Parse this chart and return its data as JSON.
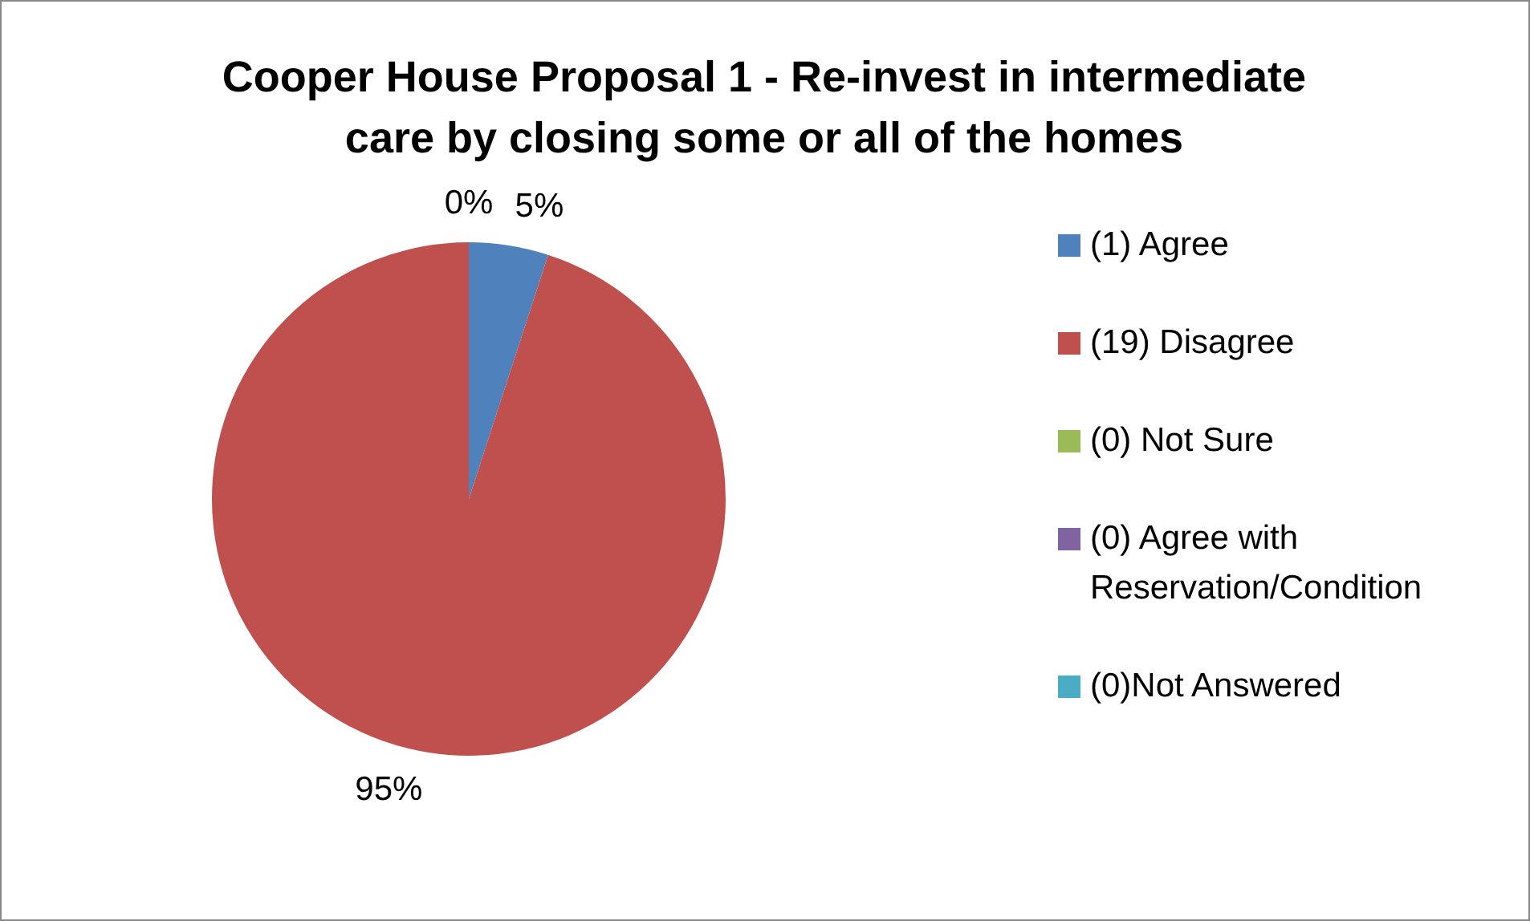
{
  "chart_data": {
    "type": "pie",
    "title": "Cooper House Proposal 1 - Re-invest in intermediate care by closing some or all of the homes",
    "categories": [
      "(1) Agree",
      "(19) Disagree",
      "(0) Not Sure",
      "(0) Agree with Reservation/Condition",
      "(0)Not Answered"
    ],
    "values": [
      5,
      95,
      0,
      0,
      0
    ],
    "colors": [
      "#4f81bd",
      "#c0504d",
      "#9bbb59",
      "#8064a2",
      "#4bacc6"
    ],
    "value_labels": [
      "5%",
      "95%",
      "0%",
      null,
      null
    ],
    "legend": "right"
  }
}
